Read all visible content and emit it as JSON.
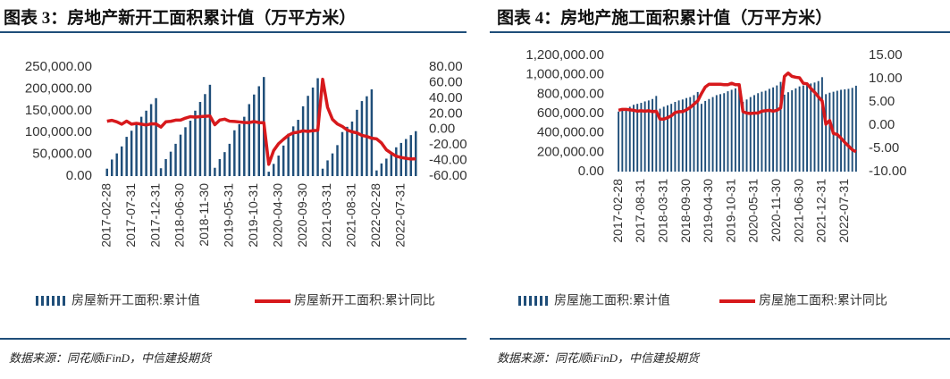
{
  "chart_data": [
    {
      "type": "bar_line",
      "title": "图表 3：房地产新开工面积累计值（万平方米）",
      "source": "数据来源：同花顺iFinD，中信建投期货",
      "categories": [
        "2017-02-28",
        null,
        null,
        null,
        null,
        "2017-07-31",
        null,
        null,
        null,
        null,
        "2017-12-31",
        null,
        null,
        null,
        null,
        "2018-06-30",
        null,
        null,
        null,
        null,
        "2018-11-30",
        null,
        null,
        null,
        null,
        "2019-05-31",
        null,
        null,
        null,
        null,
        "2019-10-31",
        null,
        null,
        null,
        null,
        "2020-04-30",
        null,
        null,
        null,
        null,
        "2020-09-30",
        null,
        null,
        null,
        null,
        "2021-03-31",
        null,
        null,
        null,
        null,
        "2021-08-31",
        null,
        null,
        null,
        null,
        "2022-02-28",
        null,
        null,
        null,
        null,
        "2022-07-31",
        null,
        null,
        null
      ],
      "series": [
        {
          "name": "房屋新开工面积:累计值",
          "color": "#1f4e79",
          "values": [
            17000,
            38000,
            52000,
            68000,
            90000,
            104000,
            118000,
            136000,
            150000,
            165000,
            178654,
            18000,
            39000,
            56000,
            74000,
            95000,
            112000,
            127000,
            150000,
            170000,
            188000,
            209342,
            19000,
            39000,
            55000,
            74000,
            105000,
            119000,
            136000,
            165000,
            187000,
            206000,
            227154,
            10000,
            28000,
            47000,
            70000,
            97000,
            114000,
            129000,
            160000,
            184000,
            203000,
            224433,
            17000,
            36000,
            52000,
            71000,
            101000,
            113000,
            125000,
            152000,
            172000,
            183000,
            198895,
            13000,
            29000,
            40000,
            52000,
            66000,
            76000,
            85000,
            94000,
            103000
          ]
        },
        {
          "name": "房屋新开工面积:累计同比",
          "color": "#d7191c",
          "axis": "y2",
          "values": [
            10.4,
            11.6,
            9.6,
            6.6,
            10.6,
            6.7,
            7.7,
            6.7,
            5.6,
            7.1,
            7.0,
            2.9,
            9.7,
            10.3,
            11.8,
            11.8,
            14.4,
            16.3,
            15.7,
            16.3,
            16.8,
            17.2,
            6.0,
            11.9,
            13.1,
            10.5,
            10.1,
            9.5,
            8.9,
            8.6,
            10.0,
            8.6,
            8.5,
            -44.9,
            -27.2,
            -18.4,
            -12.8,
            -7.6,
            -4.5,
            -3.6,
            -1.9,
            -2.6,
            -1.7,
            -1.2,
            64.3,
            28.2,
            12.8,
            6.9,
            3.8,
            -0.9,
            -3.2,
            -4.5,
            -7.7,
            -9.1,
            -11.4,
            -12.2,
            -17.5,
            -26.3,
            -30.6,
            -34.4,
            -36.1,
            -37.2,
            -38.0,
            -37.8
          ]
        }
      ],
      "ylim": [
        0,
        250000
      ],
      "yticks": [
        {
          "value": 0,
          "label": "0.00"
        },
        {
          "value": 50000,
          "label": "50,000.00"
        },
        {
          "value": 100000,
          "label": "100,000.00"
        },
        {
          "value": 150000,
          "label": "150,000.00"
        },
        {
          "value": 200000,
          "label": "200,000.00"
        },
        {
          "value": 250000,
          "label": "250,000.00"
        }
      ],
      "y2lim": [
        -60,
        80
      ],
      "y2ticks": [
        {
          "value": -60,
          "label": "-60.00"
        },
        {
          "value": -40,
          "label": "-40.00"
        },
        {
          "value": -20,
          "label": "-20.00"
        },
        {
          "value": 0,
          "label": "0.00"
        },
        {
          "value": 20,
          "label": "20.00"
        },
        {
          "value": 40,
          "label": "40.00"
        },
        {
          "value": 60,
          "label": "60.00"
        },
        {
          "value": 80,
          "label": "80.00"
        }
      ],
      "grid": false,
      "legend": "bottom"
    },
    {
      "type": "bar_line",
      "title": "图表 4：房地产施工面积累计值（万平方米）",
      "source": "数据来源：同花顺iFinD，中信建投期货",
      "categories": [
        "2017-02-28",
        null,
        null,
        null,
        null,
        null,
        "2017-08-31",
        null,
        null,
        null,
        null,
        null,
        "2018-03-31",
        null,
        null,
        null,
        null,
        null,
        "2018-09-30",
        null,
        null,
        null,
        null,
        null,
        "2019-04-30",
        null,
        null,
        null,
        null,
        null,
        "2019-10-31",
        null,
        null,
        null,
        null,
        null,
        "2020-05-31",
        null,
        null,
        null,
        null,
        null,
        "2020-11-30",
        null,
        null,
        null,
        null,
        null,
        "2021-06-30",
        null,
        null,
        null,
        null,
        null,
        "2021-12-31",
        null,
        null,
        null,
        null,
        null,
        "2022-07-31",
        null,
        null,
        null
      ],
      "series": [
        {
          "name": "房屋施工面积:累计值",
          "color": "#1f4e79",
          "values": [
            620000,
            640000,
            655000,
            670000,
            690000,
            700000,
            710000,
            725000,
            735000,
            750000,
            781484,
            650000,
            670000,
            685000,
            700000,
            720000,
            735000,
            745000,
            760000,
            770000,
            790000,
            822300,
            700000,
            730000,
            750000,
            770000,
            790000,
            800000,
            810000,
            830000,
            845000,
            860000,
            893821,
            720000,
            745000,
            770000,
            790000,
            810000,
            825000,
            835000,
            855000,
            870000,
            890000,
            926759,
            795000,
            820000,
            840000,
            860000,
            880000,
            890000,
            900000,
            910000,
            920000,
            935000,
            975387,
            800000,
            815000,
            825000,
            835000,
            845000,
            850000,
            855000,
            865000,
            887000
          ]
        },
        {
          "name": "房屋施工面积:累计同比",
          "color": "#d7191c",
          "axis": "y2",
          "values": [
            3.2,
            3.4,
            3.4,
            3.3,
            3.2,
            3.0,
            3.1,
            3.0,
            3.1,
            2.9,
            3.0,
            1.3,
            1.3,
            1.6,
            2.0,
            2.7,
            2.9,
            2.9,
            3.3,
            3.8,
            4.5,
            5.2,
            6.8,
            8.2,
            8.8,
            8.8,
            8.8,
            8.8,
            8.7,
            8.7,
            9.0,
            8.7,
            8.7,
            2.9,
            2.6,
            2.5,
            2.6,
            2.6,
            3.0,
            3.1,
            3.2,
            3.0,
            3.2,
            3.7,
            10.5,
            11.2,
            10.5,
            10.3,
            10.2,
            9.0,
            8.9,
            7.9,
            7.1,
            6.1,
            5.2,
            0.2,
            1.0,
            -1.8,
            -2.0,
            -2.8,
            -3.7,
            -4.5,
            -5.3,
            -5.7
          ]
        }
      ],
      "ylim": [
        0,
        1200000
      ],
      "yticks": [
        {
          "value": 0,
          "label": "0.00"
        },
        {
          "value": 200000,
          "label": "200,000.00"
        },
        {
          "value": 400000,
          "label": "400,000.00"
        },
        {
          "value": 600000,
          "label": "600,000.00"
        },
        {
          "value": 800000,
          "label": "800,000.00"
        },
        {
          "value": 1000000,
          "label": "1,000,000.00"
        },
        {
          "value": 1200000,
          "label": "1,200,000.00"
        }
      ],
      "y2lim": [
        -10,
        15
      ],
      "y2ticks": [
        {
          "value": -10,
          "label": "-10.00"
        },
        {
          "value": -5,
          "label": "-5.00"
        },
        {
          "value": 0,
          "label": "0.00"
        },
        {
          "value": 5,
          "label": "5.00"
        },
        {
          "value": 10,
          "label": "10.00"
        },
        {
          "value": 15,
          "label": "15.00"
        }
      ],
      "grid": false,
      "legend": "bottom"
    }
  ]
}
